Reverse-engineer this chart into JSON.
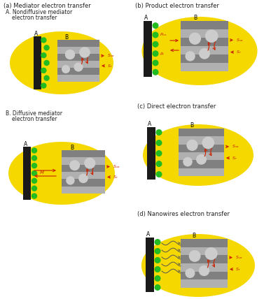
{
  "bg_color": "#ffffff",
  "yellow": "#F5D800",
  "dark_rect": "#1a1a1a",
  "green_circle": "#22BB22",
  "red_color": "#CC2200",
  "text_color": "#222222",
  "gray_bact": "#888888",
  "nanowire_color": "#555555",
  "panels": {
    "a_title": "(a) Mediator electron transfer",
    "a_subA": "A. Nondiffusive mediator",
    "a_subA2": "    electron transfer",
    "a_subB": "B. Diffusive mediator",
    "a_subB2": "    electron transfer",
    "b_title": "(b) Product electron transfer",
    "c_title": "(c) Direct electron transfer",
    "d_title": "(d) Nanowires electron transfer"
  }
}
